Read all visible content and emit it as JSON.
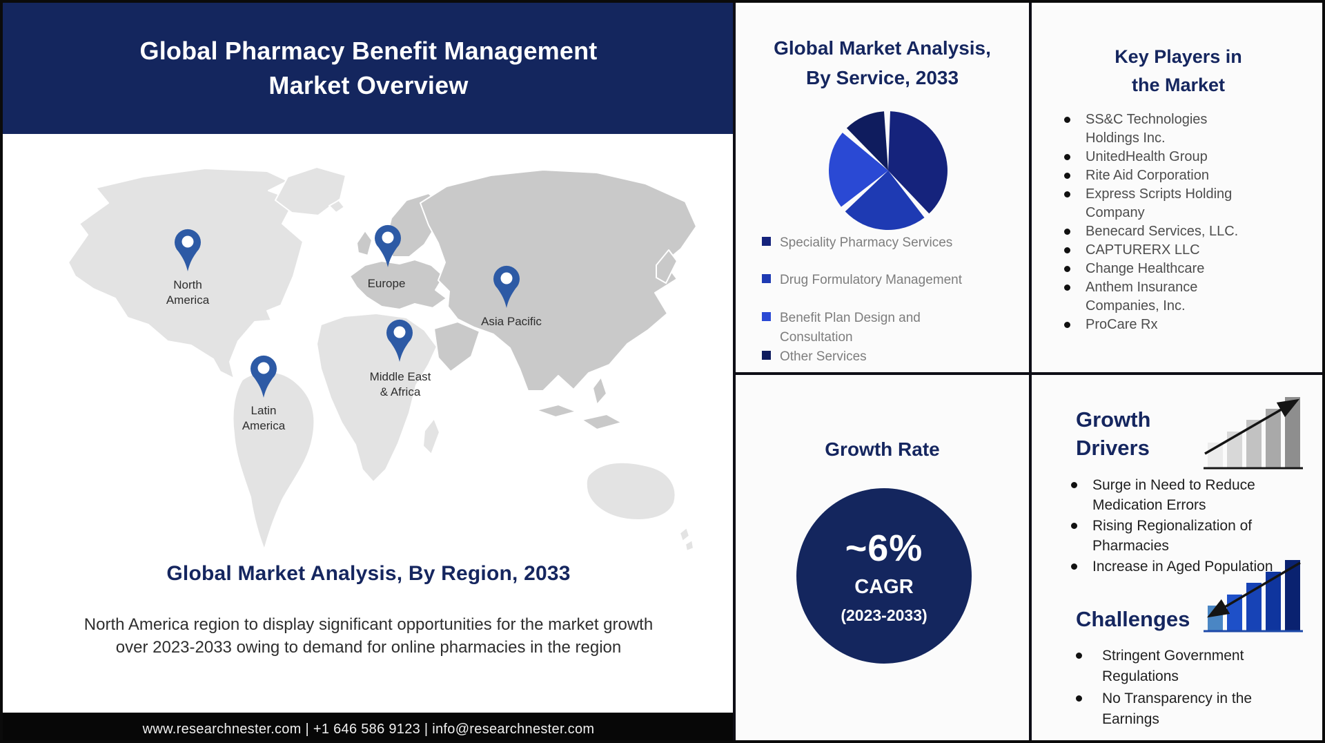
{
  "header": {
    "title": "Global Pharmacy Benefit Management\nMarket Overview"
  },
  "map": {
    "regions": [
      {
        "label": "North\nAmerica"
      },
      {
        "label": "Europe"
      },
      {
        "label": "Asia Pacific"
      },
      {
        "label": "Middle East\n& Africa"
      },
      {
        "label": "Latin\nAmerica"
      }
    ],
    "pin_color": "#2d5aa5"
  },
  "region_section": {
    "title": "Global Market Analysis, By Region, 2033",
    "description": "North America region to display significant opportunities for the market growth\nover 2023-2033 owing to demand for online pharmacies in the region"
  },
  "footer": {
    "text": "www.researchnester.com | +1 646 586 9123 | info@researchnester.com"
  },
  "service_card": {
    "title": "Global Market Analysis,\nBy Service, 2033"
  },
  "chart_data": {
    "type": "pie",
    "title": "Global Market Analysis, By Service, 2033",
    "labels": [
      "Speciality Pharmacy Services",
      "Drug Formulatory Management",
      "Benefit Plan Design and Consultation",
      "Other Services"
    ],
    "values": [
      40,
      25,
      23,
      12
    ],
    "colors": [
      "#15237c",
      "#1e3ab3",
      "#2a49d4",
      "#0f1c5e"
    ],
    "legend_position": "bottom-left",
    "units": "percent (estimated share)"
  },
  "key_players": {
    "title": "Key Players in\nthe Market",
    "items": [
      "SS&C Technologies Holdings Inc.",
      "UnitedHealth Group",
      "Rite Aid Corporation",
      "Express Scripts Holding Company",
      "Benecard Services, LLC.",
      "CAPTURERX LLC",
      "Change Healthcare",
      "Anthem Insurance Companies, Inc.",
      "ProCare Rx"
    ]
  },
  "growth_rate": {
    "title": "Growth Rate",
    "value": "~6%",
    "metric": "CAGR",
    "period": "(2023-2033)",
    "circle_color": "#14265e"
  },
  "growth_drivers": {
    "title": "Growth\nDrivers",
    "items": [
      "Surge in Need to Reduce Medication Errors",
      "Rising Regionalization of Pharmacies",
      "Increase in Aged Population"
    ],
    "icon": {
      "name": "ascending-gray-bar-chart-icon",
      "bar_colors": [
        "#ececec",
        "#d8d8d8",
        "#c2c2c2",
        "#a9a9a9",
        "#8e8e8e"
      ],
      "baseline_color": "#161616",
      "arrow_color": "#141414"
    }
  },
  "challenges": {
    "title": "Challenges",
    "items": [
      "Stringent Government Regulations",
      "No Transparency in the Earnings"
    ],
    "icon": {
      "name": "descending-arrow-blue-bar-chart-icon",
      "bar_colors": [
        "#4a86c4",
        "#1e50c8",
        "#1743b6",
        "#0f359e",
        "#0a2270"
      ],
      "baseline_color": "#1d49a8",
      "arrow_color": "#141414"
    }
  },
  "colors": {
    "header_navy": "#14265e",
    "heading_navy": "#15265f",
    "pin_blue": "#2d5aa5",
    "footer_black": "#070707",
    "map_light_gray": "#e3e3e3",
    "map_dark_gray": "#c9c9c9"
  }
}
